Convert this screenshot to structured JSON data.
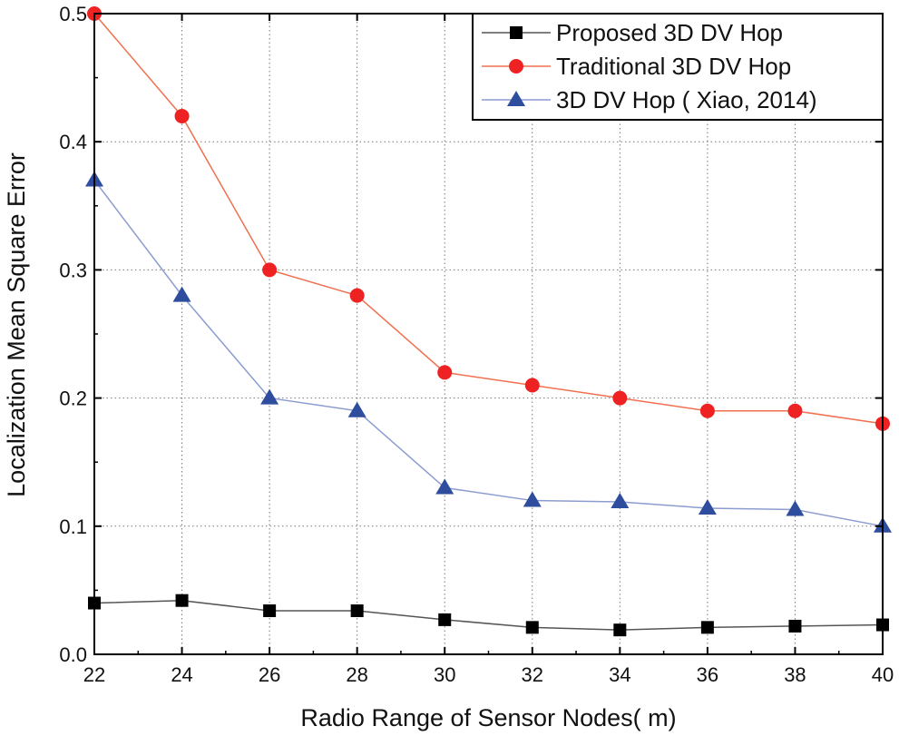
{
  "chart_data": {
    "type": "line",
    "title": "",
    "xlabel": "Radio Range of Sensor Nodes( m)",
    "ylabel": "Localization Mean Square Error",
    "xlim": [
      22,
      40
    ],
    "ylim": [
      0.0,
      0.5
    ],
    "x": [
      22,
      24,
      26,
      28,
      30,
      32,
      34,
      36,
      38,
      40
    ],
    "x_ticks": [
      "22",
      "24",
      "26",
      "28",
      "30",
      "32",
      "34",
      "36",
      "38",
      "40"
    ],
    "y_ticks": [
      {
        "value": 0.0,
        "label": "0.0"
      },
      {
        "value": 0.1,
        "label": "0.1"
      },
      {
        "value": 0.2,
        "label": "0.2"
      },
      {
        "value": 0.3,
        "label": "0.3"
      },
      {
        "value": 0.4,
        "label": "0.4"
      },
      {
        "value": 0.5,
        "label": "0.5"
      }
    ],
    "grid": true,
    "legend_position": "top-right",
    "series": [
      {
        "name": "Proposed 3D DV Hop",
        "color": "#000000",
        "line_color": "#555555",
        "marker": "square",
        "values": [
          0.04,
          0.042,
          0.034,
          0.034,
          0.027,
          0.021,
          0.019,
          0.021,
          0.022,
          0.023
        ]
      },
      {
        "name": "Traditional 3D DV Hop",
        "color": "#ee2222",
        "line_color": "#f07050",
        "marker": "circle",
        "values": [
          0.5,
          0.42,
          0.3,
          0.28,
          0.22,
          0.21,
          0.2,
          0.19,
          0.19,
          0.18
        ]
      },
      {
        "name": "3D DV Hop ( Xiao, 2014)",
        "color": "#2e4d9e",
        "line_color": "#8c9cd0",
        "marker": "triangle",
        "values": [
          0.37,
          0.28,
          0.2,
          0.19,
          0.13,
          0.12,
          0.119,
          0.114,
          0.113,
          0.1
        ]
      }
    ]
  }
}
